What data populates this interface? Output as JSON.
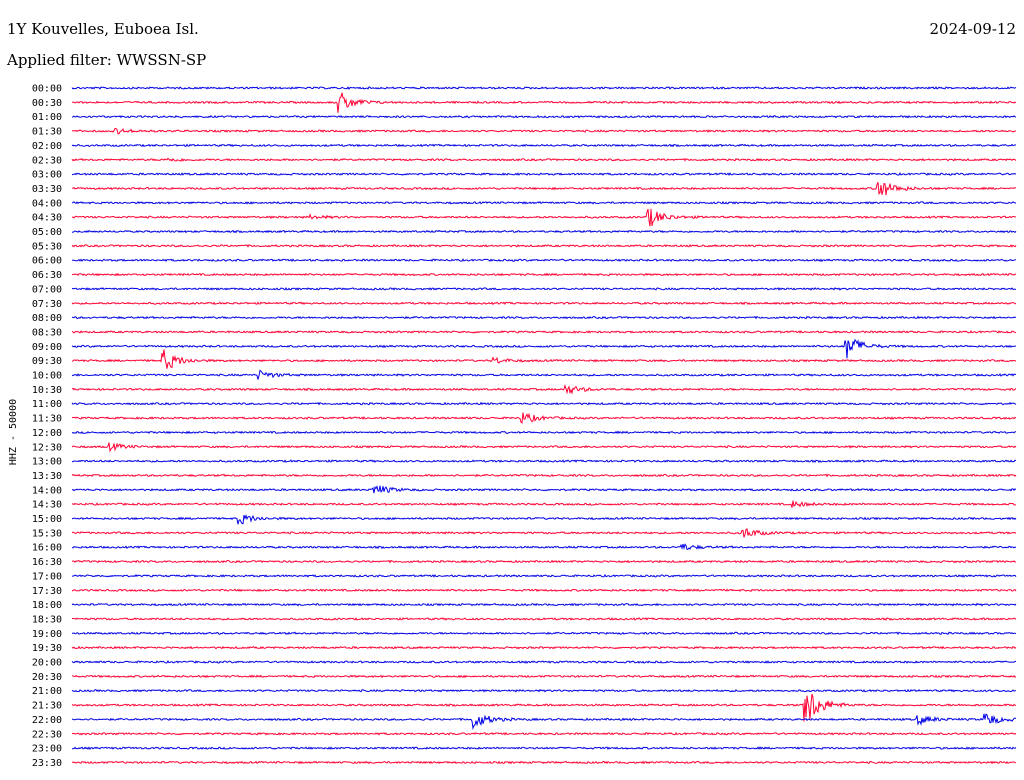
{
  "header": {
    "station": "1Y Kouvelles, Euboea Isl.",
    "date": "2024-09-12",
    "filter": "Applied filter: WWSSN-SP"
  },
  "chart_data": {
    "type": "line",
    "title": "1Y Kouvelles, Euboea Isl.",
    "ylabel": "HHZ - 50000",
    "colors": {
      "odd_rows": "#0000e6",
      "even_rows": "#ff0033"
    },
    "row_labels": [
      "00:00",
      "00:30",
      "01:00",
      "01:30",
      "02:00",
      "02:30",
      "03:00",
      "03:30",
      "04:00",
      "04:30",
      "05:00",
      "05:30",
      "06:00",
      "06:30",
      "07:00",
      "07:30",
      "08:00",
      "08:30",
      "09:00",
      "09:30",
      "10:00",
      "10:30",
      "11:00",
      "11:30",
      "12:00",
      "12:30",
      "13:00",
      "13:30",
      "14:00",
      "14:30",
      "15:00",
      "15:30",
      "16:00",
      "16:30",
      "17:00",
      "17:30",
      "18:00",
      "18:30",
      "19:00",
      "19:30",
      "20:00",
      "20:30",
      "21:00",
      "21:30",
      "22:00",
      "22:30",
      "23:00",
      "23:30"
    ],
    "row_minutes": 30,
    "grid": false,
    "events": [
      {
        "row": "00:30",
        "minute": 8.5,
        "amplitude": 1.8
      },
      {
        "row": "01:30",
        "minute": 1.4,
        "amplitude": 0.4
      },
      {
        "row": "02:30",
        "minute": 3.1,
        "amplitude": 0.25
      },
      {
        "row": "03:30",
        "minute": 25.6,
        "amplitude": 2.0
      },
      {
        "row": "04:30",
        "minute": 18.3,
        "amplitude": 1.8
      },
      {
        "row": "04:30",
        "minute": 7.6,
        "amplitude": 0.3
      },
      {
        "row": "09:30",
        "minute": 2.9,
        "amplitude": 2.0
      },
      {
        "row": "09:30",
        "minute": 13.4,
        "amplitude": 0.5
      },
      {
        "row": "09:00",
        "minute": 24.6,
        "amplitude": 2.2
      },
      {
        "row": "10:00",
        "minute": 5.9,
        "amplitude": 0.8
      },
      {
        "row": "10:30",
        "minute": 15.7,
        "amplitude": 0.8
      },
      {
        "row": "11:30",
        "minute": 14.3,
        "amplitude": 1.0
      },
      {
        "row": "12:30",
        "minute": 1.2,
        "amplitude": 0.6
      },
      {
        "row": "14:00",
        "minute": 9.6,
        "amplitude": 1.0
      },
      {
        "row": "14:30",
        "minute": 22.9,
        "amplitude": 0.5
      },
      {
        "row": "15:00",
        "minute": 5.3,
        "amplitude": 1.0
      },
      {
        "row": "15:30",
        "minute": 21.3,
        "amplitude": 1.0
      },
      {
        "row": "16:00",
        "minute": 19.4,
        "amplitude": 0.5
      },
      {
        "row": "21:30",
        "minute": 23.3,
        "amplitude": 4.0
      },
      {
        "row": "22:00",
        "minute": 12.7,
        "amplitude": 1.8
      },
      {
        "row": "22:00",
        "minute": 26.9,
        "amplitude": 0.8
      },
      {
        "row": "22:00",
        "minute": 29.0,
        "amplitude": 1.2
      }
    ]
  }
}
